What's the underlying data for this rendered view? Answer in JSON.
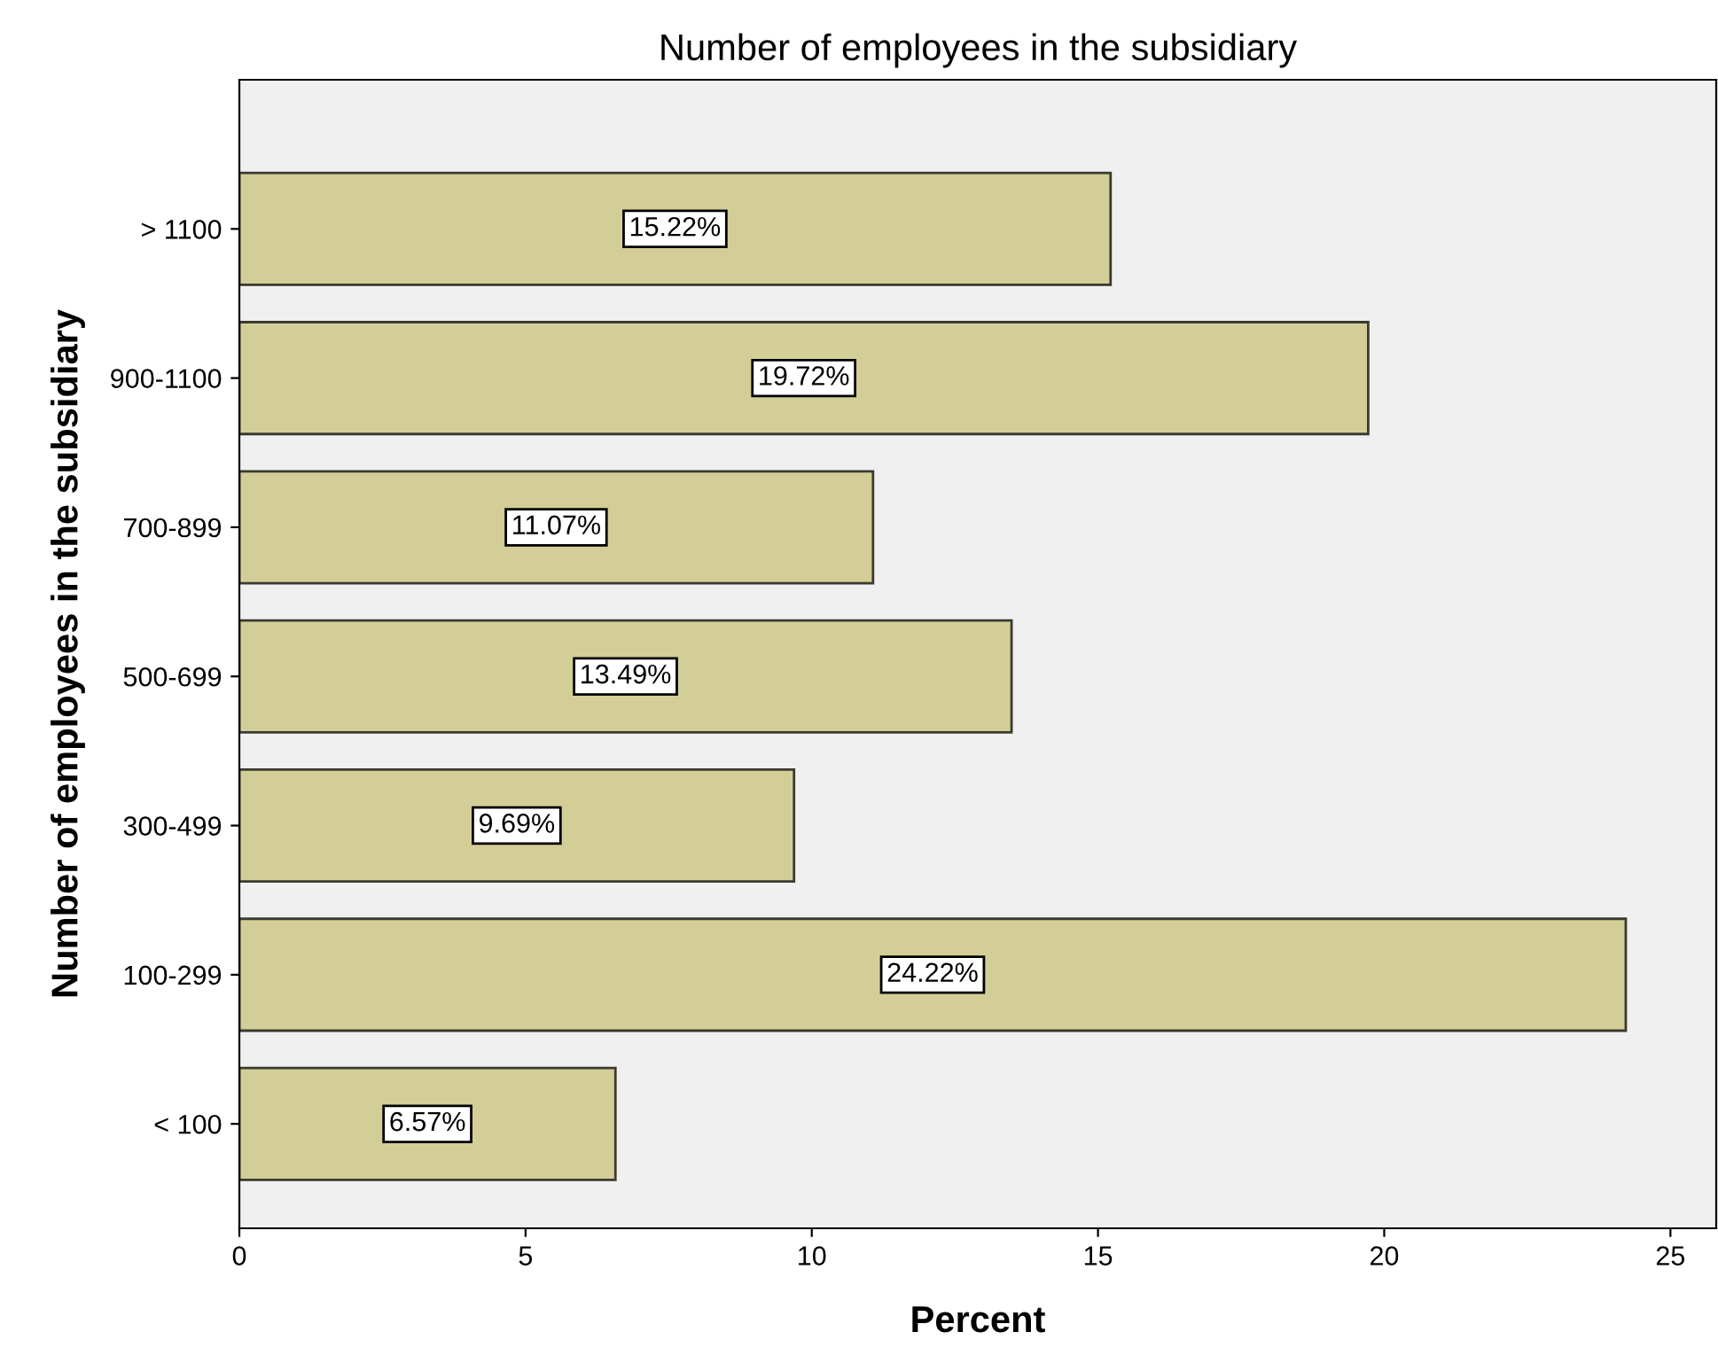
{
  "chart_data": {
    "type": "bar",
    "orientation": "horizontal",
    "title": "Number of employees in the subsidiary",
    "xlabel": "Percent",
    "ylabel": "Number of employees in the subsidiary",
    "categories": [
      "> 1100",
      "900-1100",
      "700-899",
      "500-699",
      "300-499",
      "100-299",
      "< 100"
    ],
    "values": [
      15.22,
      19.72,
      11.07,
      13.49,
      9.69,
      24.22,
      6.57
    ],
    "value_labels": [
      "15.22%",
      "19.72%",
      "11.07%",
      "13.49%",
      "9.69%",
      "24.22%",
      "6.57%"
    ],
    "color": "#d3ce98",
    "xlim": [
      0,
      25.8
    ],
    "xticks": [
      0,
      5,
      10,
      15,
      20,
      25
    ],
    "grid": false,
    "legend": false
  }
}
